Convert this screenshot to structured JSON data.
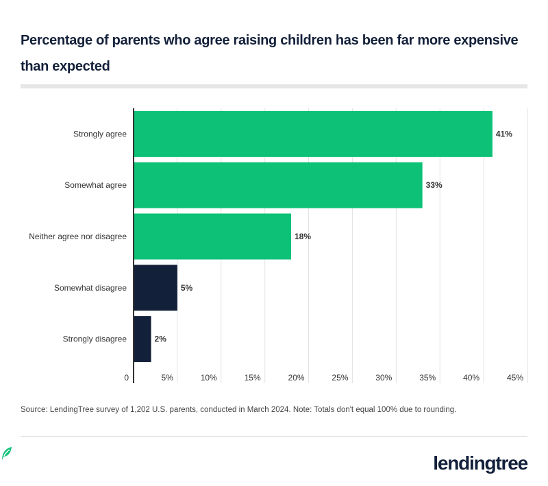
{
  "title": "Percentage of parents who agree raising children has been far more expensive than expected",
  "source": "Source: LendingTree survey of 1,202 U.S. parents, conducted in March 2024. Note: Totals don't equal 100% due to rounding.",
  "logo": "lendingtree",
  "colors": {
    "agree": "#0dc177",
    "disagree": "#13203a",
    "axis": "#333333",
    "grid": "#e3e3e3"
  },
  "chart_data": {
    "type": "bar",
    "orientation": "horizontal",
    "categories": [
      "Strongly agree",
      "Somewhat agree",
      "Neither agree nor disagree",
      "Somewhat disagree",
      "Strongly disagree"
    ],
    "values": [
      41,
      33,
      18,
      5,
      2
    ],
    "data_labels": [
      "41%",
      "33%",
      "18%",
      "5%",
      "2%"
    ],
    "bar_colors": [
      "#0dc177",
      "#0dc177",
      "#0dc177",
      "#13203a",
      "#13203a"
    ],
    "xlim": [
      0,
      45
    ],
    "xticks": [
      0,
      5,
      10,
      15,
      20,
      25,
      30,
      35,
      40,
      45
    ],
    "xtick_labels": [
      "0",
      "5%",
      "10%",
      "15%",
      "20%",
      "25%",
      "30%",
      "35%",
      "40%",
      "45%"
    ],
    "grid": "vertical",
    "xlabel": "",
    "ylabel": ""
  }
}
